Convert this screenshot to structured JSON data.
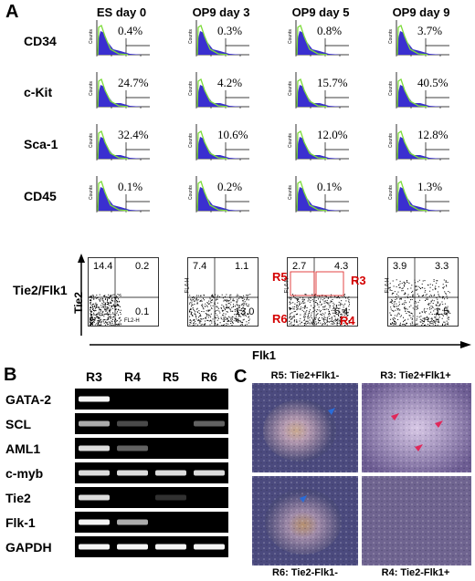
{
  "panels": {
    "A": "A",
    "B": "B",
    "C": "C"
  },
  "panel_a": {
    "columns": [
      "ES day 0",
      "OP9 day 3",
      "OP9 day 5",
      "OP9 day 9"
    ],
    "rows": [
      {
        "label": "CD34",
        "values": [
          "0.4%",
          "0.3%",
          "0.8%",
          "3.7%"
        ],
        "xaxis": "FL1-H"
      },
      {
        "label": "c-Kit",
        "values": [
          "24.7%",
          "4.2%",
          "15.7%",
          "40.5%"
        ],
        "xaxis": "FL1-H"
      },
      {
        "label": "Sca-1",
        "values": [
          "32.4%",
          "10.6%",
          "12.0%",
          "12.8%"
        ],
        "xaxis": "FL2-H"
      },
      {
        "label": "CD45",
        "values": [
          "0.1%",
          "0.2%",
          "0.1%",
          "1.3%"
        ],
        "xaxis": "FL2-H"
      }
    ],
    "hist_ylabel": "Counts",
    "scatter_row_label": "Tie2/Flk1",
    "scatter_yaxis_label": "Tie2",
    "scatter_xaxis_label": "Flk1",
    "scatter_axis_x": "FL2-H",
    "scatter_axis_y": "FL4-H",
    "quadrants": [
      {
        "ul": "14.4",
        "ur": "0.2",
        "lr": "0.1"
      },
      {
        "ul": "7.4",
        "ur": "1.1",
        "lr": "13.0"
      },
      {
        "ul": "2.7",
        "ur": "4.3",
        "lr": "6.4"
      },
      {
        "ul": "3.9",
        "ur": "3.3",
        "lr": "1.5"
      }
    ],
    "gates": {
      "r3": "R3",
      "r4": "R4",
      "r5": "R5",
      "r6": "R6"
    }
  },
  "panel_b": {
    "lanes": [
      "R3",
      "R4",
      "R5",
      "R6"
    ],
    "genes": [
      {
        "name": "GATA-2",
        "bands": [
          1.0,
          0.0,
          0.0,
          0.0
        ]
      },
      {
        "name": "SCL",
        "bands": [
          0.7,
          0.3,
          0.0,
          0.4
        ]
      },
      {
        "name": "AML1",
        "bands": [
          0.9,
          0.4,
          0.0,
          0.0
        ]
      },
      {
        "name": "c-myb",
        "bands": [
          0.9,
          0.9,
          0.9,
          0.9
        ]
      },
      {
        "name": "Tie2",
        "bands": [
          0.9,
          0.0,
          0.2,
          0.0
        ]
      },
      {
        "name": "Flk-1",
        "bands": [
          1.0,
          0.7,
          0.0,
          0.0
        ]
      },
      {
        "name": "GAPDH",
        "bands": [
          1.0,
          1.0,
          1.0,
          1.0
        ]
      }
    ]
  },
  "panel_c": {
    "top_left": "R5: Tie2+Flk1-",
    "top_right": "R3: Tie2+Flk1+",
    "bottom_left": "R6: Tie2-Flk1-",
    "bottom_right": "R4: Tie2-Flk1+"
  },
  "colors": {
    "histogram_fill": "#3a2fd0",
    "histogram_outline": "#7ddc3a",
    "gate": "#e03030",
    "gel_band": "#f4f4f4"
  }
}
